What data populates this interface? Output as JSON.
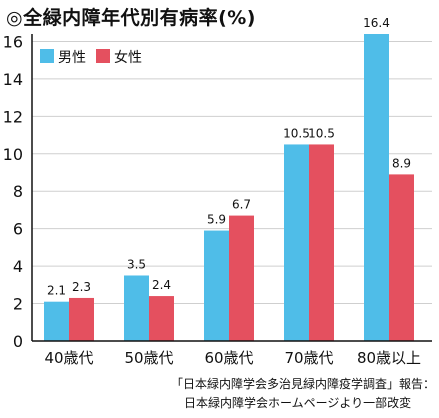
{
  "chart_data": {
    "type": "bar",
    "title": "◎全緑内障年代別有病率(%)",
    "categories": [
      "40歳代",
      "50歳代",
      "60歳代",
      "70歳代",
      "80歳以上"
    ],
    "series": [
      {
        "name": "男性",
        "color": "#4fbde8",
        "values": [
          2.1,
          3.5,
          5.9,
          10.5,
          16.4
        ]
      },
      {
        "name": "女性",
        "color": "#e4505f",
        "values": [
          2.3,
          2.4,
          6.7,
          10.5,
          8.9
        ]
      }
    ],
    "y_ticks": [
      "0",
      "2",
      "4",
      "6",
      "8",
      "10",
      "12",
      "14",
      "16"
    ],
    "data_labels": [
      [
        "2.1",
        "3.5",
        "5.9",
        "10.5",
        "16.4"
      ],
      [
        "2.3",
        "2.4",
        "6.7",
        "10.5",
        "8.9"
      ]
    ],
    "ylim": [
      0,
      16.4
    ],
    "grid": true,
    "legend_position": "top-left",
    "xlabel": "",
    "ylabel": ""
  },
  "source": {
    "line1": "「日本緑内障学会多治見緑内障疫学調査」報告：",
    "line2": "日本緑内障学会ホームページより一部改変"
  }
}
